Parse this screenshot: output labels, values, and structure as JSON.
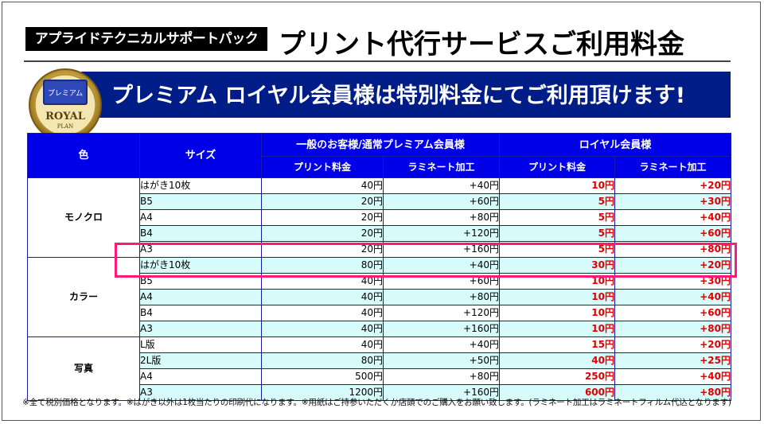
{
  "header": {
    "badge": "アプライドテクニカルサポートパック",
    "title": "プリント代行サービスご利用料金"
  },
  "banner": {
    "text": "プレミアム ロイヤル会員様は特別料金にてご利用頂けます!",
    "card_label": "プレミアム",
    "card_brand_1": "ROYAL",
    "card_brand_2": "PLAN"
  },
  "table": {
    "headers": {
      "color": "色",
      "size": "サイズ",
      "general": "一般のお客様/通常プレミアム会員様",
      "royal": "ロイヤル会員様",
      "print_fee": "プリント料金",
      "laminate": "ラミネート加工",
      "print_fee_royal": "プリント料金",
      "laminate_royal": "ラミネート加工"
    },
    "groups": [
      {
        "name": "モノクロ",
        "rows": [
          {
            "size": "はがき10枚",
            "print": "40円",
            "laminate": "+40円",
            "royal_print": "10円",
            "royal_laminate": "+20円"
          },
          {
            "size": "B5",
            "print": "20円",
            "laminate": "+60円",
            "royal_print": "5円",
            "royal_laminate": "+30円"
          },
          {
            "size": "A4",
            "print": "20円",
            "laminate": "+80円",
            "royal_print": "5円",
            "royal_laminate": "+40円"
          },
          {
            "size": "B4",
            "print": "20円",
            "laminate": "+120円",
            "royal_print": "5円",
            "royal_laminate": "+60円"
          },
          {
            "size": "A3",
            "print": "20円",
            "laminate": "+160円",
            "royal_print": "5円",
            "royal_laminate": "+80円"
          }
        ]
      },
      {
        "name": "カラー",
        "rows": [
          {
            "size": "はがき10枚",
            "print": "80円",
            "laminate": "+40円",
            "royal_print": "30円",
            "royal_laminate": "+20円"
          },
          {
            "size": "B5",
            "print": "40円",
            "laminate": "+60円",
            "royal_print": "10円",
            "royal_laminate": "+30円"
          },
          {
            "size": "A4",
            "print": "40円",
            "laminate": "+80円",
            "royal_print": "10円",
            "royal_laminate": "+40円"
          },
          {
            "size": "B4",
            "print": "40円",
            "laminate": "+120円",
            "royal_print": "10円",
            "royal_laminate": "+60円"
          },
          {
            "size": "A3",
            "print": "40円",
            "laminate": "+160円",
            "royal_print": "10円",
            "royal_laminate": "+80円"
          }
        ]
      },
      {
        "name": "写真",
        "rows": [
          {
            "size": "L版",
            "print": "40円",
            "laminate": "+40円",
            "royal_print": "15円",
            "royal_laminate": "+20円"
          },
          {
            "size": "2L版",
            "print": "80円",
            "laminate": "+50円",
            "royal_print": "40円",
            "royal_laminate": "+25円"
          },
          {
            "size": "A4",
            "print": "500円",
            "laminate": "+80円",
            "royal_print": "250円",
            "royal_laminate": "+40円"
          },
          {
            "size": "A3",
            "print": "1200円",
            "laminate": "+160円",
            "royal_print": "600円",
            "royal_laminate": "+80円"
          }
        ]
      }
    ]
  },
  "footnote": "※全て税別価格となります。※はがき以外は1枚当たりの印刷代になります。※用紙はご持参いただくか店頭でのご購入をお願い致します。(ラミネート加工はラミネートフィルム代込となります)",
  "colors": {
    "header_blue": "#0000e8",
    "banner_navy": "#001c86",
    "royal_red": "#e00000",
    "highlight_pink": "#ff1a77",
    "row_tint": "#d7fbfb"
  }
}
